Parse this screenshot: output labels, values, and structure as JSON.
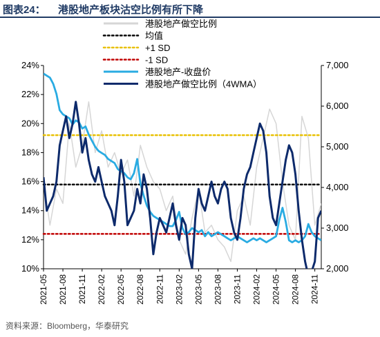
{
  "header": {
    "label": "图表24：",
    "title": "港股地产板块沽空比例有所下降"
  },
  "source": "资料来源：Bloomberg，华泰研究",
  "chart_data": {
    "type": "line",
    "title": "港股地产板块沽空比例有所下降",
    "x_tick_labels": [
      "2021-05",
      "2021-08",
      "2021-11",
      "2022-02",
      "2022-05",
      "2022-08",
      "2022-11",
      "2023-02",
      "2023-05",
      "2023-08",
      "2023-11",
      "2024-02",
      "2024-05",
      "2024-08",
      "2024-11"
    ],
    "x_range": [
      "2021-05",
      "2024-12"
    ],
    "y_left": {
      "ticks": [
        "10%",
        "12%",
        "14%",
        "16%",
        "18%",
        "20%",
        "22%",
        "24%"
      ],
      "range": [
        10,
        24
      ],
      "unit": "%"
    },
    "y_right": {
      "ticks": [
        "2,000",
        "3,000",
        "4,000",
        "5,000",
        "6,000",
        "7,000"
      ],
      "range": [
        2000,
        7000
      ]
    },
    "legend_position": "top-right",
    "grid": false,
    "series": [
      {
        "name": "港股地产做空比例",
        "axis": "left",
        "color": "#d6d6d6",
        "style": "solid",
        "x": [
          0,
          1,
          2,
          3,
          4,
          5,
          6,
          7,
          8,
          9,
          10,
          11,
          12,
          13,
          14,
          15,
          16,
          17,
          18,
          19,
          20,
          21,
          22,
          23,
          24,
          25,
          26,
          27,
          28,
          29,
          30,
          31,
          32,
          33,
          34,
          35,
          36,
          37,
          38,
          39,
          40,
          41,
          42,
          43
        ],
        "values": [
          16.0,
          13.0,
          15.5,
          14.5,
          20.0,
          17.0,
          18.5,
          21.5,
          18.0,
          19.5,
          17.0,
          18.0,
          16.5,
          17.5,
          15.0,
          18.5,
          17.0,
          16.0,
          15.5,
          14.0,
          15.0,
          12.0,
          11.0,
          13.5,
          15.5,
          12.5,
          13.0,
          12.0,
          11.5,
          10.5,
          14.0,
          15.0,
          13.0,
          17.0,
          19.0,
          21.0,
          20.0,
          16.0,
          13.0,
          12.0,
          20.5,
          19.0,
          13.0,
          14.5
        ]
      },
      {
        "name": "均值",
        "axis": "left",
        "color": "#000000",
        "style": "dotted",
        "level": 15.8
      },
      {
        "name": "+1 SD",
        "axis": "left",
        "color": "#e8c000",
        "style": "dotted",
        "level": 19.2
      },
      {
        "name": "-1 SD",
        "axis": "left",
        "color": "#c00000",
        "style": "dotted",
        "level": 12.4
      },
      {
        "name": "港股地产-收盘价",
        "axis": "right",
        "color": "#29abe2",
        "style": "solid",
        "x": [
          0,
          0.5,
          1,
          1.5,
          2,
          2.5,
          3,
          3.5,
          4,
          4.5,
          5,
          5.5,
          6,
          6.5,
          7,
          7.5,
          8,
          8.5,
          9,
          9.5,
          10,
          10.5,
          11,
          11.5,
          12,
          12.5,
          13,
          13.5,
          14,
          14.5,
          15,
          15.5,
          16,
          16.5,
          17,
          17.5,
          18,
          18.5,
          19,
          19.5,
          20,
          20.5,
          21,
          21.5,
          22,
          22.5,
          23,
          23.5,
          24,
          24.5,
          25,
          25.5,
          26,
          26.5,
          27,
          27.5,
          28,
          28.5,
          29,
          29.5,
          30,
          30.5,
          31,
          31.5,
          32,
          32.5,
          33,
          33.5,
          34,
          34.5,
          35,
          35.5,
          36,
          36.5,
          37,
          37.5,
          38,
          38.5,
          39,
          39.5,
          40,
          40.5,
          41,
          41.5,
          42,
          42.5,
          43
        ],
        "values": [
          6800,
          6750,
          6700,
          6550,
          6300,
          5900,
          5800,
          5750,
          5700,
          5550,
          5650,
          5600,
          5450,
          5500,
          5300,
          5150,
          5000,
          4900,
          4850,
          4800,
          4700,
          4650,
          4600,
          4450,
          4400,
          4350,
          4250,
          4200,
          4350,
          4700,
          4100,
          3800,
          3550,
          3400,
          3300,
          3250,
          3200,
          3150,
          3100,
          3050,
          3050,
          3200,
          3400,
          3000,
          2850,
          2900,
          3000,
          2950,
          2900,
          2950,
          2800,
          2900,
          2800,
          2850,
          2900,
          2850,
          2800,
          2750,
          2700,
          2750,
          2800,
          2750,
          2700,
          2650,
          2700,
          2750,
          2700,
          2750,
          2700,
          2650,
          2700,
          2750,
          2800,
          3200,
          3500,
          3150,
          2700,
          2650,
          2700,
          2650,
          2700,
          2800,
          3100,
          2900,
          2800,
          2750,
          2700
        ]
      },
      {
        "name": "港股地产做空比例（4WMA）",
        "axis": "left",
        "color": "#0d2a6b",
        "style": "solid",
        "x": [
          0,
          0.5,
          1,
          1.5,
          2,
          2.5,
          3,
          3.5,
          4,
          4.5,
          5,
          5.5,
          6,
          6.5,
          7,
          7.5,
          8,
          8.5,
          9,
          9.5,
          10,
          10.5,
          11,
          11.5,
          12,
          12.5,
          13,
          13.5,
          14,
          14.5,
          15,
          15.5,
          16,
          16.5,
          17,
          17.5,
          18,
          18.5,
          19,
          19.5,
          20,
          20.5,
          21,
          21.5,
          22,
          22.5,
          23,
          23.5,
          24,
          24.5,
          25,
          25.5,
          26,
          26.5,
          27,
          27.5,
          28,
          28.5,
          29,
          29.5,
          30,
          30.5,
          31,
          31.5,
          32,
          32.5,
          33,
          33.5,
          34,
          34.5,
          35,
          35.5,
          36,
          36.5,
          37,
          37.5,
          38,
          38.5,
          39,
          39.5,
          40,
          40.5,
          41,
          41.5,
          42,
          42.5,
          43
        ],
        "values": [
          16.3,
          14.0,
          14.5,
          15.0,
          16.0,
          18.5,
          19.5,
          20.5,
          19.0,
          20.0,
          21.5,
          20.0,
          18.0,
          19.0,
          17.5,
          16.5,
          16.0,
          17.0,
          16.0,
          15.0,
          14.5,
          14.0,
          13.0,
          15.0,
          17.5,
          16.0,
          13.0,
          13.5,
          14.0,
          15.5,
          14.5,
          16.5,
          15.5,
          13.5,
          11.0,
          12.5,
          13.5,
          13.0,
          12.5,
          13.5,
          14.5,
          13.0,
          12.0,
          13.5,
          13.0,
          11.0,
          10.0,
          13.5,
          15.5,
          14.5,
          14.0,
          15.0,
          16.0,
          15.0,
          14.5,
          15.5,
          16.0,
          15.5,
          13.5,
          12.5,
          12.0,
          13.5,
          15.5,
          16.5,
          17.0,
          18.0,
          19.0,
          20.0,
          19.5,
          18.0,
          15.0,
          13.5,
          13.0,
          14.5,
          16.0,
          17.5,
          18.5,
          18.0,
          16.5,
          14.0,
          12.0,
          10.5,
          9.5,
          9.8,
          10.5,
          13.5,
          14.0
        ]
      }
    ]
  }
}
